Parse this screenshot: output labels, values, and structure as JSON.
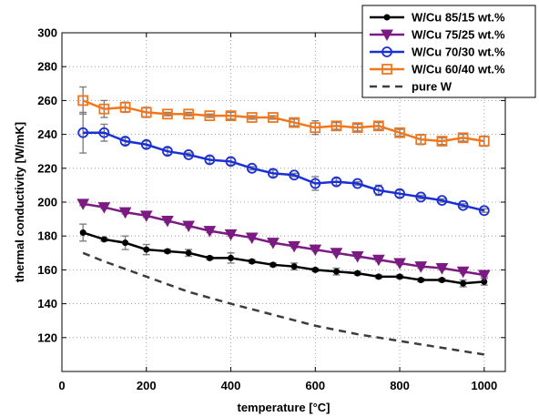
{
  "chart_data": {
    "type": "line",
    "title": "",
    "xlabel": "temperature [°C]",
    "ylabel": "thermal conductivity [W/mK]",
    "xlim": [
      0,
      1050
    ],
    "ylim": [
      100,
      300
    ],
    "xticks": [
      0,
      200,
      400,
      600,
      800,
      1000
    ],
    "yticks": [
      120,
      140,
      160,
      180,
      200,
      220,
      240,
      260,
      280,
      300
    ],
    "grid": true,
    "legend_position": "top-right",
    "x": [
      50,
      100,
      150,
      200,
      250,
      300,
      350,
      400,
      450,
      500,
      550,
      600,
      650,
      700,
      750,
      800,
      850,
      900,
      950,
      1000
    ],
    "series": [
      {
        "name": "W/Cu 85/15 wt.%",
        "color": "#000000",
        "marker": "dot",
        "values": [
          182,
          178,
          176,
          172,
          171,
          170,
          167,
          167,
          165,
          163,
          162,
          160,
          159,
          158,
          156,
          156,
          154,
          154,
          152,
          153
        ],
        "errors": [
          5,
          1,
          4,
          3,
          1,
          2,
          1,
          3,
          1,
          1,
          2,
          1,
          2,
          1,
          1,
          1,
          1,
          1,
          2,
          2
        ]
      },
      {
        "name": "W/Cu 75/25 wt.%",
        "color": "#7a1a82",
        "marker": "triangle-down",
        "values": [
          199,
          197,
          194,
          192,
          189,
          186,
          183,
          181,
          179,
          176,
          174,
          172,
          170,
          168,
          166,
          164,
          162,
          161,
          159,
          157
        ],
        "errors": [
          1,
          1,
          1,
          1,
          1,
          1,
          1,
          1,
          1,
          1,
          1,
          1,
          1,
          1,
          1,
          1,
          1,
          1,
          1,
          1
        ]
      },
      {
        "name": "W/Cu 70/30 wt.%",
        "color": "#1a2fd4",
        "marker": "circle",
        "values": [
          241,
          241,
          236,
          234,
          230,
          228,
          225,
          224,
          220,
          217,
          216,
          211,
          212,
          211,
          207,
          205,
          203,
          201,
          198,
          195
        ],
        "errors": [
          12,
          5,
          2,
          2,
          2,
          1,
          2,
          2,
          1,
          2,
          1,
          4,
          2,
          1,
          3,
          2,
          1,
          1,
          1,
          1
        ]
      },
      {
        "name": "W/Cu 60/40 wt.%",
        "color": "#f2771c",
        "marker": "square",
        "values": [
          260,
          255,
          256,
          253,
          252,
          252,
          251,
          251,
          250,
          250,
          247,
          244,
          245,
          244,
          245,
          241,
          237,
          236,
          238,
          236
        ],
        "errors": [
          8,
          5,
          3,
          3,
          1,
          1,
          1,
          2,
          1,
          1,
          2,
          4,
          2,
          2,
          2,
          2,
          3,
          2,
          2,
          3
        ]
      },
      {
        "name": "pure W",
        "color": "#3c3c3c",
        "marker": "none",
        "dashed": true,
        "x": [
          50,
          100,
          200,
          300,
          400,
          600,
          700,
          800,
          1000
        ],
        "values": [
          170,
          165,
          156,
          147,
          140,
          127,
          122,
          118,
          110
        ]
      }
    ]
  }
}
